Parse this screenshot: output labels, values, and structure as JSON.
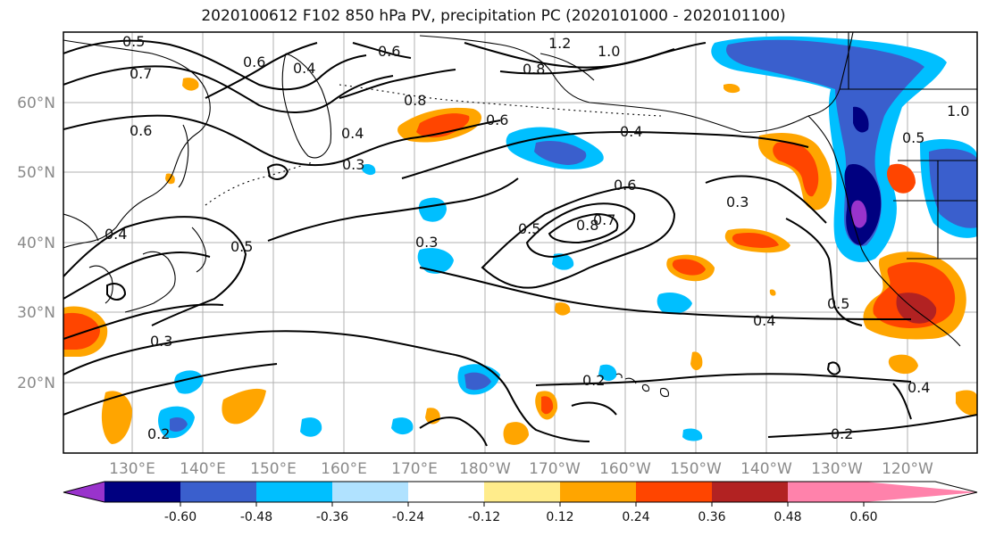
{
  "title": "2020100612 F102 850 hPa PV, precipitation PC (2020101000 - 2020101100)",
  "map": {
    "lat_labels": [
      "60°N",
      "50°N",
      "40°N",
      "30°N",
      "20°N"
    ],
    "lon_labels": [
      "130°E",
      "140°E",
      "150°E",
      "160°E",
      "170°E",
      "180°W",
      "170°W",
      "160°W",
      "150°W",
      "140°W",
      "130°W",
      "120°W"
    ],
    "contour_labels": [
      "0.5",
      "0.7",
      "0.6",
      "0.4",
      "0.6",
      "0.8",
      "1.2",
      "1.0",
      "0.8",
      "0.6",
      "0.4",
      "0.6",
      "0.4",
      "0.5",
      "0.3",
      "0.6",
      "0.5",
      "0.8",
      "0.7",
      "0.3",
      "0.3",
      "0.4",
      "0.3",
      "0.4",
      "0.2",
      "0.2",
      "0.5",
      "0.4",
      "0.2",
      "1.0",
      "0.5"
    ]
  },
  "colorbar": {
    "colors": [
      "#9933cc",
      "#000080",
      "#3a5fcd",
      "#00bfff",
      "#b0e2ff",
      "#ffffff",
      "#ffec8b",
      "#ffa500",
      "#ff4500",
      "#b22222",
      "#ff82ab"
    ],
    "labels": [
      "-0.60",
      "-0.48",
      "-0.36",
      "-0.24",
      "-0.12",
      "0.12",
      "0.24",
      "0.36",
      "0.48",
      "0.60"
    ]
  }
}
